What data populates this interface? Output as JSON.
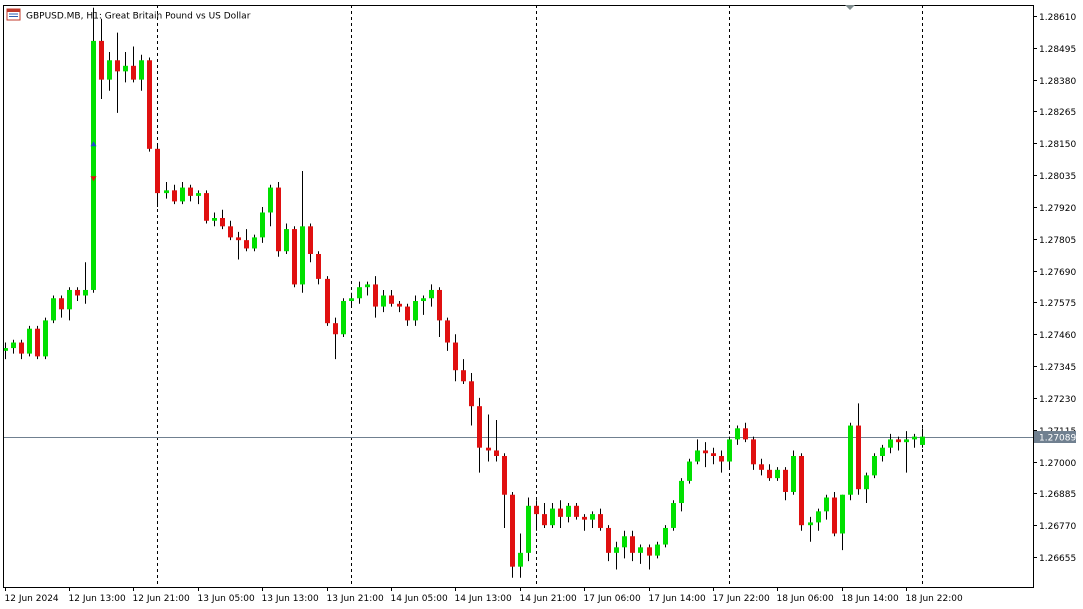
{
  "header": {
    "symbol_text": "GBPUSD.MB, H1:  Great Britain Pound vs US Dollar"
  },
  "colors": {
    "background": "#ffffff",
    "axis": "#000000",
    "grid": "#000000",
    "bull_body": "#00e000",
    "bear_body": "#e01010",
    "wick": "#000000",
    "bid_line": "#708090",
    "price_label_bg": "#708090",
    "price_label_text": "#ffffff",
    "buy_arrow": "#1e50c8",
    "sell_arrow": "#e01010"
  },
  "chart_data": {
    "type": "candlestick",
    "symbol": "GBPUSD.MB",
    "timeframe": "H1",
    "description": "Great Britain Pound vs US Dollar",
    "ylim": [
      1.2655,
      1.2865
    ],
    "y_ticks": [
      "1.28610",
      "1.28495",
      "1.28380",
      "1.28265",
      "1.28150",
      "1.28035",
      "1.27920",
      "1.27805",
      "1.27690",
      "1.27575",
      "1.27460",
      "1.27345",
      "1.27230",
      "1.27115",
      "1.27000",
      "1.26885",
      "1.26770",
      "1.26655"
    ],
    "x_labels": [
      {
        "label": "12 Jun 2024",
        "index": 0
      },
      {
        "label": "12 Jun 13:00",
        "index": 8
      },
      {
        "label": "12 Jun 21:00",
        "index": 16
      },
      {
        "label": "13 Jun 05:00",
        "index": 24
      },
      {
        "label": "13 Jun 13:00",
        "index": 32
      },
      {
        "label": "13 Jun 21:00",
        "index": 40
      },
      {
        "label": "14 Jun 05:00",
        "index": 48
      },
      {
        "label": "14 Jun 13:00",
        "index": 56
      },
      {
        "label": "14 Jun 21:00",
        "index": 64
      },
      {
        "label": "17 Jun 06:00",
        "index": 72
      },
      {
        "label": "17 Jun 14:00",
        "index": 80
      },
      {
        "label": "17 Jun 22:00",
        "index": 88
      },
      {
        "label": "18 Jun 06:00",
        "index": 96
      },
      {
        "label": "18 Jun 14:00",
        "index": 104
      },
      {
        "label": "18 Jun 22:00",
        "index": 112
      }
    ],
    "separators": [
      19,
      43,
      66,
      90,
      114
    ],
    "current_price": 1.27089,
    "current_price_label": "1.27089",
    "grid": false,
    "candles": [
      {
        "o": 1.274,
        "h": 1.2743,
        "l": 1.2737,
        "c": 1.2741
      },
      {
        "o": 1.2741,
        "h": 1.2744,
        "l": 1.2739,
        "c": 1.2743
      },
      {
        "o": 1.2743,
        "h": 1.2744,
        "l": 1.2737,
        "c": 1.2739
      },
      {
        "o": 1.2739,
        "h": 1.2749,
        "l": 1.2738,
        "c": 1.2748
      },
      {
        "o": 1.2748,
        "h": 1.2749,
        "l": 1.2737,
        "c": 1.2738
      },
      {
        "o": 1.2738,
        "h": 1.2752,
        "l": 1.2737,
        "c": 1.2751
      },
      {
        "o": 1.2751,
        "h": 1.276,
        "l": 1.275,
        "c": 1.2759
      },
      {
        "o": 1.2759,
        "h": 1.276,
        "l": 1.2752,
        "c": 1.2755
      },
      {
        "o": 1.2755,
        "h": 1.2763,
        "l": 1.2751,
        "c": 1.2762
      },
      {
        "o": 1.2762,
        "h": 1.2763,
        "l": 1.2758,
        "c": 1.276
      },
      {
        "o": 1.276,
        "h": 1.2772,
        "l": 1.2757,
        "c": 1.2762
      },
      {
        "o": 1.2762,
        "h": 1.2864,
        "l": 1.2761,
        "c": 1.2852
      },
      {
        "o": 1.2852,
        "h": 1.286,
        "l": 1.2831,
        "c": 1.2838
      },
      {
        "o": 1.2838,
        "h": 1.2848,
        "l": 1.2834,
        "c": 1.2845
      },
      {
        "o": 1.2845,
        "h": 1.2855,
        "l": 1.2826,
        "c": 1.2841
      },
      {
        "o": 1.2841,
        "h": 1.2848,
        "l": 1.2837,
        "c": 1.2843
      },
      {
        "o": 1.2843,
        "h": 1.285,
        "l": 1.2837,
        "c": 1.2838
      },
      {
        "o": 1.2838,
        "h": 1.2847,
        "l": 1.2834,
        "c": 1.2845
      },
      {
        "o": 1.2845,
        "h": 1.2846,
        "l": 1.2812,
        "c": 1.2813
      },
      {
        "o": 1.2813,
        "h": 1.2814,
        "l": 1.2792,
        "c": 1.2797
      },
      {
        "o": 1.2797,
        "h": 1.2801,
        "l": 1.2795,
        "c": 1.2798
      },
      {
        "o": 1.2798,
        "h": 1.28,
        "l": 1.2793,
        "c": 1.2794
      },
      {
        "o": 1.2794,
        "h": 1.2801,
        "l": 1.2793,
        "c": 1.2799
      },
      {
        "o": 1.2799,
        "h": 1.28,
        "l": 1.2794,
        "c": 1.2796
      },
      {
        "o": 1.2796,
        "h": 1.2798,
        "l": 1.2793,
        "c": 1.2797
      },
      {
        "o": 1.2797,
        "h": 1.2798,
        "l": 1.2786,
        "c": 1.2787
      },
      {
        "o": 1.2787,
        "h": 1.279,
        "l": 1.2785,
        "c": 1.2788
      },
      {
        "o": 1.2788,
        "h": 1.2791,
        "l": 1.2784,
        "c": 1.2785
      },
      {
        "o": 1.2785,
        "h": 1.2787,
        "l": 1.278,
        "c": 1.2781
      },
      {
        "o": 1.2781,
        "h": 1.2783,
        "l": 1.2773,
        "c": 1.278
      },
      {
        "o": 1.278,
        "h": 1.2784,
        "l": 1.2776,
        "c": 1.2777
      },
      {
        "o": 1.2777,
        "h": 1.2782,
        "l": 1.2776,
        "c": 1.2781
      },
      {
        "o": 1.2781,
        "h": 1.2792,
        "l": 1.2779,
        "c": 1.279
      },
      {
        "o": 1.279,
        "h": 1.28,
        "l": 1.2785,
        "c": 1.2799
      },
      {
        "o": 1.2799,
        "h": 1.2801,
        "l": 1.2774,
        "c": 1.2776
      },
      {
        "o": 1.2776,
        "h": 1.2786,
        "l": 1.2775,
        "c": 1.2784
      },
      {
        "o": 1.2784,
        "h": 1.2785,
        "l": 1.2763,
        "c": 1.2764
      },
      {
        "o": 1.2764,
        "h": 1.2805,
        "l": 1.2761,
        "c": 1.2785
      },
      {
        "o": 1.2785,
        "h": 1.2786,
        "l": 1.2772,
        "c": 1.2775
      },
      {
        "o": 1.2775,
        "h": 1.2776,
        "l": 1.2764,
        "c": 1.2766
      },
      {
        "o": 1.2766,
        "h": 1.2767,
        "l": 1.2749,
        "c": 1.275
      },
      {
        "o": 1.275,
        "h": 1.2752,
        "l": 1.2737,
        "c": 1.2746
      },
      {
        "o": 1.2746,
        "h": 1.2759,
        "l": 1.2745,
        "c": 1.2758
      },
      {
        "o": 1.2758,
        "h": 1.2761,
        "l": 1.2756,
        "c": 1.2759
      },
      {
        "o": 1.2759,
        "h": 1.2765,
        "l": 1.2757,
        "c": 1.2763
      },
      {
        "o": 1.2763,
        "h": 1.2765,
        "l": 1.276,
        "c": 1.2764
      },
      {
        "o": 1.2764,
        "h": 1.2767,
        "l": 1.2752,
        "c": 1.2756
      },
      {
        "o": 1.2756,
        "h": 1.2762,
        "l": 1.2754,
        "c": 1.276
      },
      {
        "o": 1.276,
        "h": 1.2762,
        "l": 1.2756,
        "c": 1.2757
      },
      {
        "o": 1.2757,
        "h": 1.2758,
        "l": 1.2754,
        "c": 1.2756
      },
      {
        "o": 1.2756,
        "h": 1.2757,
        "l": 1.2749,
        "c": 1.2751
      },
      {
        "o": 1.2751,
        "h": 1.276,
        "l": 1.2749,
        "c": 1.2758
      },
      {
        "o": 1.2758,
        "h": 1.276,
        "l": 1.2753,
        "c": 1.2759
      },
      {
        "o": 1.2759,
        "h": 1.2764,
        "l": 1.2756,
        "c": 1.2762
      },
      {
        "o": 1.2762,
        "h": 1.2763,
        "l": 1.2745,
        "c": 1.2751
      },
      {
        "o": 1.2751,
        "h": 1.2752,
        "l": 1.274,
        "c": 1.2743
      },
      {
        "o": 1.2743,
        "h": 1.2746,
        "l": 1.2729,
        "c": 1.2733
      },
      {
        "o": 1.2733,
        "h": 1.2737,
        "l": 1.2728,
        "c": 1.2729
      },
      {
        "o": 1.2729,
        "h": 1.2732,
        "l": 1.2713,
        "c": 1.272
      },
      {
        "o": 1.272,
        "h": 1.2723,
        "l": 1.2696,
        "c": 1.2705
      },
      {
        "o": 1.2705,
        "h": 1.2717,
        "l": 1.27,
        "c": 1.2704
      },
      {
        "o": 1.2704,
        "h": 1.2715,
        "l": 1.27,
        "c": 1.2702
      },
      {
        "o": 1.2702,
        "h": 1.2703,
        "l": 1.2676,
        "c": 1.2688
      },
      {
        "o": 1.2688,
        "h": 1.2689,
        "l": 1.2658,
        "c": 1.2662
      },
      {
        "o": 1.2662,
        "h": 1.2674,
        "l": 1.2658,
        "c": 1.2667
      },
      {
        "o": 1.2667,
        "h": 1.2687,
        "l": 1.2664,
        "c": 1.2684
      },
      {
        "o": 1.2684,
        "h": 1.2686,
        "l": 1.2675,
        "c": 1.2681
      },
      {
        "o": 1.2681,
        "h": 1.2685,
        "l": 1.2676,
        "c": 1.2677
      },
      {
        "o": 1.2677,
        "h": 1.2685,
        "l": 1.2676,
        "c": 1.2683
      },
      {
        "o": 1.2683,
        "h": 1.2686,
        "l": 1.2676,
        "c": 1.268
      },
      {
        "o": 1.268,
        "h": 1.2685,
        "l": 1.2678,
        "c": 1.2684
      },
      {
        "o": 1.2684,
        "h": 1.2685,
        "l": 1.2679,
        "c": 1.268
      },
      {
        "o": 1.268,
        "h": 1.2681,
        "l": 1.2675,
        "c": 1.2679
      },
      {
        "o": 1.2679,
        "h": 1.2682,
        "l": 1.2676,
        "c": 1.2681
      },
      {
        "o": 1.2681,
        "h": 1.2683,
        "l": 1.2675,
        "c": 1.2676
      },
      {
        "o": 1.2676,
        "h": 1.2677,
        "l": 1.2664,
        "c": 1.2667
      },
      {
        "o": 1.2667,
        "h": 1.2671,
        "l": 1.2661,
        "c": 1.2669
      },
      {
        "o": 1.2669,
        "h": 1.2675,
        "l": 1.2665,
        "c": 1.2673
      },
      {
        "o": 1.2673,
        "h": 1.2675,
        "l": 1.2664,
        "c": 1.2667
      },
      {
        "o": 1.2667,
        "h": 1.267,
        "l": 1.2663,
        "c": 1.2669
      },
      {
        "o": 1.2669,
        "h": 1.267,
        "l": 1.2661,
        "c": 1.2666
      },
      {
        "o": 1.2666,
        "h": 1.2671,
        "l": 1.2665,
        "c": 1.267
      },
      {
        "o": 1.267,
        "h": 1.2677,
        "l": 1.2669,
        "c": 1.2676
      },
      {
        "o": 1.2676,
        "h": 1.2686,
        "l": 1.2675,
        "c": 1.2685
      },
      {
        "o": 1.2685,
        "h": 1.2694,
        "l": 1.2682,
        "c": 1.2693
      },
      {
        "o": 1.2693,
        "h": 1.2701,
        "l": 1.2692,
        "c": 1.27
      },
      {
        "o": 1.27,
        "h": 1.2708,
        "l": 1.2699,
        "c": 1.2704
      },
      {
        "o": 1.2704,
        "h": 1.2707,
        "l": 1.2698,
        "c": 1.2703
      },
      {
        "o": 1.2703,
        "h": 1.2705,
        "l": 1.2699,
        "c": 1.2702
      },
      {
        "o": 1.2702,
        "h": 1.2704,
        "l": 1.2696,
        "c": 1.27
      },
      {
        "o": 1.27,
        "h": 1.2709,
        "l": 1.2697,
        "c": 1.2708
      },
      {
        "o": 1.2708,
        "h": 1.2713,
        "l": 1.2706,
        "c": 1.2712
      },
      {
        "o": 1.2712,
        "h": 1.2714,
        "l": 1.2707,
        "c": 1.2708
      },
      {
        "o": 1.2708,
        "h": 1.2709,
        "l": 1.2697,
        "c": 1.2699
      },
      {
        "o": 1.2699,
        "h": 1.2701,
        "l": 1.2695,
        "c": 1.2697
      },
      {
        "o": 1.2697,
        "h": 1.2699,
        "l": 1.2693,
        "c": 1.2694
      },
      {
        "o": 1.2694,
        "h": 1.2698,
        "l": 1.2693,
        "c": 1.2697
      },
      {
        "o": 1.2697,
        "h": 1.2698,
        "l": 1.2686,
        "c": 1.2689
      },
      {
        "o": 1.2689,
        "h": 1.2704,
        "l": 1.2688,
        "c": 1.2702
      },
      {
        "o": 1.2702,
        "h": 1.2703,
        "l": 1.2675,
        "c": 1.2677
      },
      {
        "o": 1.2677,
        "h": 1.268,
        "l": 1.2671,
        "c": 1.2678
      },
      {
        "o": 1.2678,
        "h": 1.2683,
        "l": 1.2675,
        "c": 1.2682
      },
      {
        "o": 1.2682,
        "h": 1.2688,
        "l": 1.2679,
        "c": 1.2687
      },
      {
        "o": 1.2687,
        "h": 1.2689,
        "l": 1.2673,
        "c": 1.2674
      },
      {
        "o": 1.2674,
        "h": 1.2688,
        "l": 1.2668,
        "c": 1.2688
      },
      {
        "o": 1.2688,
        "h": 1.2714,
        "l": 1.2686,
        "c": 1.2713
      },
      {
        "o": 1.2713,
        "h": 1.2721,
        "l": 1.2688,
        "c": 1.269
      },
      {
        "o": 1.269,
        "h": 1.2696,
        "l": 1.2685,
        "c": 1.2695
      },
      {
        "o": 1.2695,
        "h": 1.2703,
        "l": 1.2694,
        "c": 1.2702
      },
      {
        "o": 1.2702,
        "h": 1.2706,
        "l": 1.27,
        "c": 1.2705
      },
      {
        "o": 1.2705,
        "h": 1.271,
        "l": 1.2703,
        "c": 1.2708
      },
      {
        "o": 1.2708,
        "h": 1.2709,
        "l": 1.2704,
        "c": 1.2707
      },
      {
        "o": 1.2707,
        "h": 1.2711,
        "l": 1.2696,
        "c": 1.2708
      },
      {
        "o": 1.2708,
        "h": 1.271,
        "l": 1.2705,
        "c": 1.2709
      },
      {
        "o": 1.2706,
        "h": 1.2712,
        "l": 1.2705,
        "c": 1.2709
      }
    ],
    "trade_markers": [
      {
        "index": 11,
        "price": 1.2815,
        "side": "buy"
      },
      {
        "index": 11,
        "price": 1.2802,
        "side": "sell"
      }
    ]
  }
}
